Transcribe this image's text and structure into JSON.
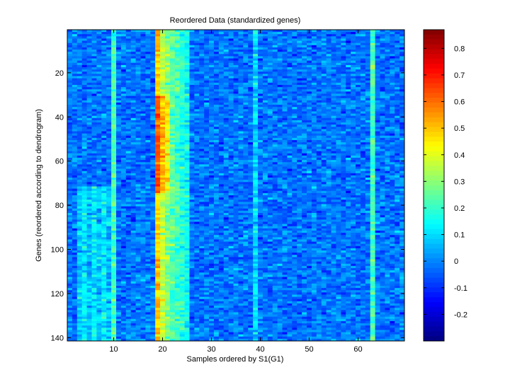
{
  "chart_data": {
    "type": "heatmap",
    "title": "Reordered Data (standardized genes)",
    "xlabel": "Samples ordered by S1(G1)",
    "ylabel": "Genes (reordered according to dendrogram)",
    "n_samples": 69,
    "n_genes": 141,
    "xlim": [
      0.5,
      69.5
    ],
    "ylim": [
      0.5,
      141.5
    ],
    "x_ticks": [
      10,
      20,
      30,
      40,
      50,
      60
    ],
    "y_ticks": [
      20,
      40,
      60,
      80,
      100,
      120,
      140
    ],
    "y_reversed": true,
    "colormap": "jet",
    "clim": [
      -0.3,
      0.87
    ],
    "colorbar_ticks": [
      0.8,
      0.7,
      0.6,
      0.5,
      0.4,
      0.3,
      0.2,
      0.1,
      0,
      -0.1,
      -0.2
    ],
    "column_profile_note_free": true,
    "bright_columns": [
      {
        "sample": 10,
        "level": 0.22
      },
      {
        "sample": 19,
        "level": 0.48
      },
      {
        "sample": 20,
        "level": 0.36
      },
      {
        "sample": 21,
        "level": 0.3
      },
      {
        "sample": 22,
        "level": 0.24
      },
      {
        "sample": 23,
        "level": 0.22
      },
      {
        "sample": 24,
        "level": 0.18
      },
      {
        "sample": 25,
        "level": 0.14
      },
      {
        "sample": 63,
        "level": 0.22
      },
      {
        "sample": 39,
        "level": 0.1
      }
    ],
    "block_rows": [
      72,
      141
    ],
    "block_samples": [
      3,
      9
    ],
    "block_level": 0.12,
    "grid": false
  }
}
